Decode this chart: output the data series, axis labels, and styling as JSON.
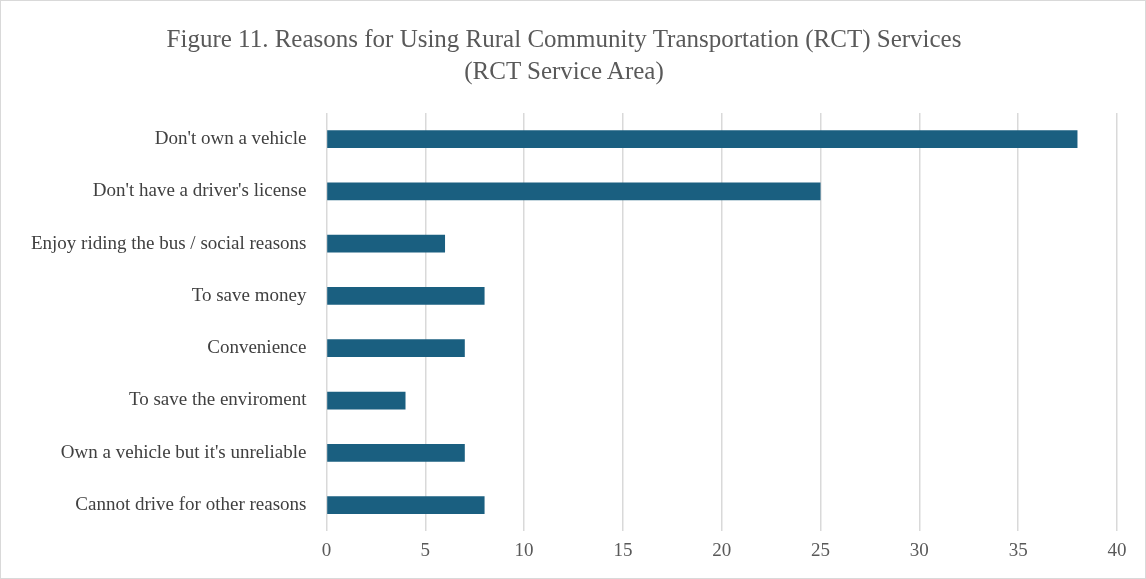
{
  "chart_data": {
    "type": "bar",
    "orientation": "horizontal",
    "title": "Figure 11. Reasons for Using Rural Community Transportation (RCT) Services",
    "subtitle": "(RCT Service Area)",
    "categories": [
      "Don't own a vehicle",
      "Don't have a driver's license",
      "Enjoy riding the bus / social reasons",
      "To save money",
      "Convenience",
      "To save the enviroment",
      "Own a vehicle but it's unreliable",
      "Cannot drive for other reasons"
    ],
    "values": [
      38,
      25,
      6,
      8,
      7,
      4,
      7,
      8
    ],
    "color": "#1a5f80",
    "xlim": [
      0,
      40
    ],
    "xticks": [
      0,
      5,
      10,
      15,
      20,
      25,
      30,
      35,
      40
    ],
    "grid": "x",
    "legend": false
  }
}
